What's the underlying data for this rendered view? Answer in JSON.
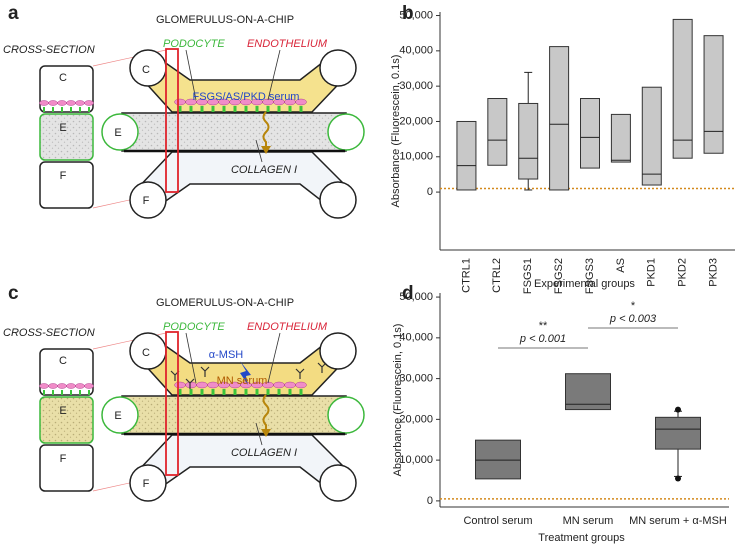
{
  "panel_labels": [
    "a",
    "b",
    "c",
    "d"
  ],
  "diagrams": [
    {
      "title": "GLOMERULUS-ON-A-CHIP",
      "cross_section_label": "CROSS-SECTION",
      "podocyte_label": "PODOCYTE",
      "endothelium_label": "ENDOTHELIUM",
      "serum_label": "FSGS/AS/PKD serum",
      "collagen_label": "COLLAGEN I",
      "section_labels": [
        "C",
        "E",
        "F"
      ],
      "channel_labels": [
        "C",
        "E",
        "F"
      ]
    },
    {
      "title": "GLOMERULUS-ON-A-CHIP",
      "cross_section_label": "CROSS-SECTION",
      "podocyte_label": "PODOCYTE",
      "endothelium_label": "ENDOTHELIUM",
      "serum_label": "MN serum",
      "drug_label": "α-MSH",
      "collagen_label": "COLLAGEN I",
      "section_labels": [
        "C",
        "E",
        "F"
      ],
      "channel_labels": [
        "C",
        "E",
        "F"
      ]
    }
  ],
  "chart_data": [
    {
      "type": "box",
      "ylabel": "Absorbance (Fluorescein, 0.1s)",
      "xlabel": "Experimental groups",
      "categories": [
        "CTRL1",
        "CTRL2",
        "FSGS1",
        "FSGS2",
        "FSGS3",
        "AS",
        "PKD1",
        "PKD2",
        "PKD3"
      ],
      "q1": [
        600,
        7600,
        3700,
        600,
        6800,
        8500,
        2000,
        9600,
        11000
      ],
      "median": [
        7500,
        14700,
        9600,
        19200,
        15500,
        9000,
        5100,
        14700,
        17200
      ],
      "q3": [
        20000,
        26500,
        25100,
        41200,
        26500,
        22000,
        29700,
        48900,
        44300
      ],
      "whisker_low": [
        null,
        null,
        600,
        null,
        null,
        null,
        null,
        null,
        null
      ],
      "whisker_high": [
        null,
        null,
        33900,
        null,
        null,
        null,
        null,
        null,
        null
      ],
      "color": "#c8c8c8",
      "reference_line": 1000,
      "reference_color": "#d4891c",
      "ylim": [
        -16400,
        51000
      ],
      "yticks": [
        0,
        {
          "value": 10000,
          "label": "10,000"
        },
        {
          "value": 20000,
          "label": "20,000"
        },
        {
          "value": 30000,
          "label": "30,000"
        },
        {
          "value": 40000,
          "label": "40,000"
        },
        {
          "value": 50000,
          "label": "50,000"
        }
      ]
    },
    {
      "type": "box",
      "ylabel": "Absorbance (Fluorescein, 0.1s)",
      "xlabel": "Treatment groups",
      "categories": [
        "Control serum",
        "MN serum",
        "MN serum + α-MSH"
      ],
      "q1": [
        5400,
        22400,
        12700
      ],
      "median": [
        10000,
        23700,
        17600
      ],
      "q3": [
        14900,
        31200,
        20500
      ],
      "whisker_low": [
        null,
        null,
        6000
      ],
      "whisker_high": [
        null,
        null,
        22000
      ],
      "outliers": [
        null,
        null,
        [
          22400,
          5500
        ]
      ],
      "color": "#7a7a7a",
      "reference_line": 500,
      "reference_color": "#d4891c",
      "annotations": [
        {
          "stars": "**",
          "text": "p < 0.001"
        },
        {
          "stars": "*",
          "text": "p < 0.003"
        }
      ],
      "ylim": [
        -1500,
        51000
      ],
      "yticks": [
        0,
        {
          "value": 10000,
          "label": "10,000"
        },
        {
          "value": 20000,
          "label": "20,000"
        },
        {
          "value": 30000,
          "label": "30,000"
        },
        {
          "value": 40000,
          "label": "40,000"
        },
        {
          "value": 50000,
          "label": "50,000"
        }
      ]
    }
  ]
}
